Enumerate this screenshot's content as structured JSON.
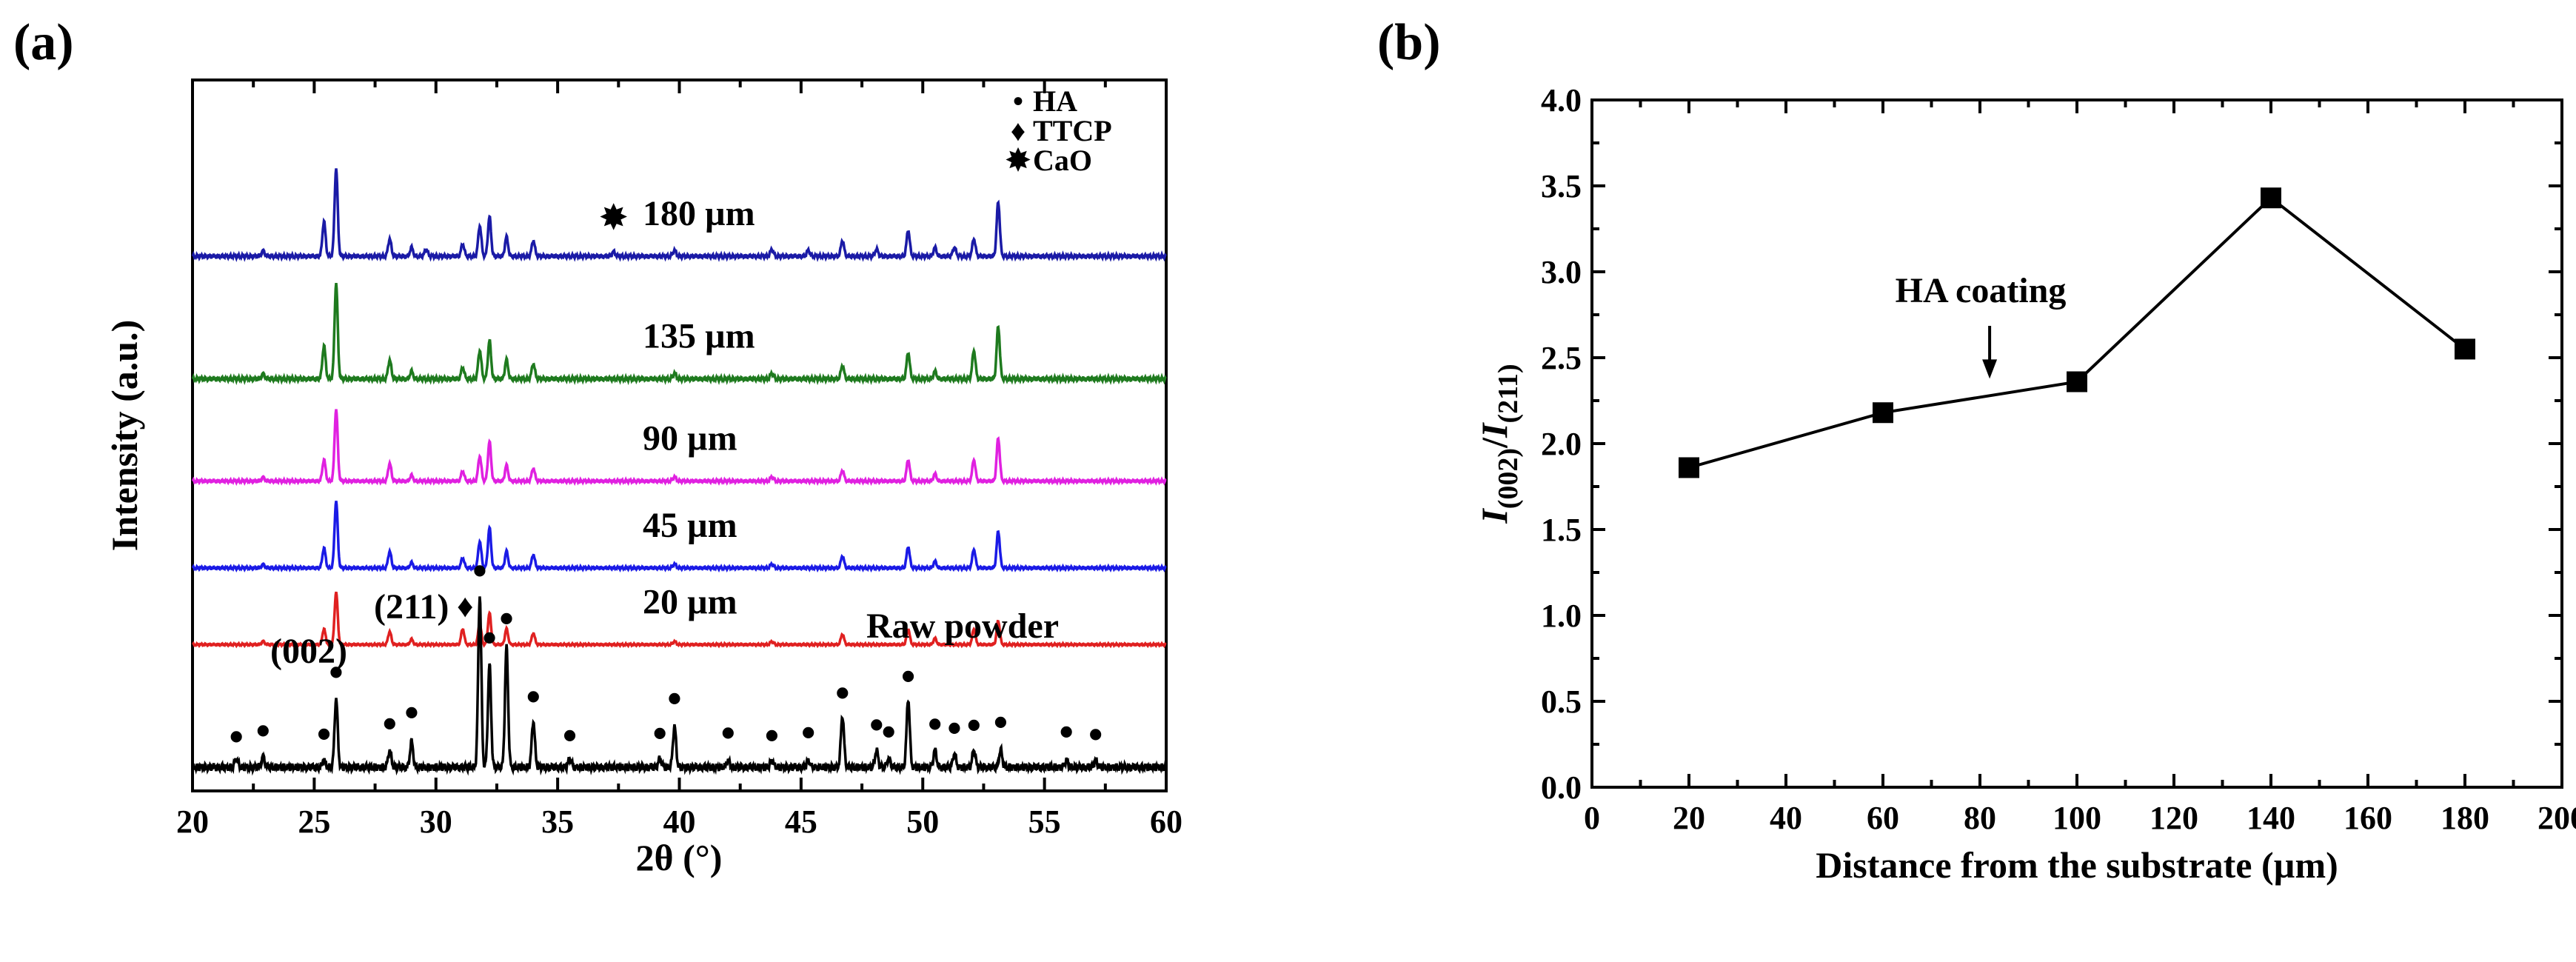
{
  "figure": {
    "panel_a_label": "(a)",
    "panel_b_label": "(b)"
  },
  "chart_data": [
    {
      "type": "line",
      "title": "",
      "xlabel": "2θ (°)",
      "ylabel": "Intensity (a.u.)",
      "xlim": [
        20,
        60
      ],
      "xticks": [
        "20",
        "25",
        "30",
        "35",
        "40",
        "45",
        "50",
        "55",
        "60"
      ],
      "legend": {
        "position": "top-right",
        "entries": [
          {
            "symbol": "•",
            "label": "HA"
          },
          {
            "symbol": "♦",
            "label": "TTCP"
          },
          {
            "symbol": "✸",
            "label": "CaO"
          }
        ]
      },
      "hkl_labels": [
        {
          "text": "(002)",
          "two_theta": 25.9
        },
        {
          "text": "(211)",
          "two_theta": 31.8
        }
      ],
      "series": [
        {
          "name": "180 µm",
          "color": "#1a1aa6",
          "offset": 5,
          "scale": 0.55,
          "peaks": [
            [
              25.9,
              1.0
            ],
            [
              25.4,
              0.4
            ],
            [
              22.9,
              0.06
            ],
            [
              28.1,
              0.2
            ],
            [
              29.0,
              0.1
            ],
            [
              29.6,
              0.08
            ],
            [
              31.1,
              0.14
            ],
            [
              31.8,
              0.35
            ],
            [
              32.2,
              0.45
            ],
            [
              32.9,
              0.22
            ],
            [
              34.0,
              0.18
            ],
            [
              37.3,
              0.05
            ],
            [
              39.8,
              0.07
            ],
            [
              43.8,
              0.08
            ],
            [
              45.3,
              0.07
            ],
            [
              46.7,
              0.18
            ],
            [
              48.1,
              0.08
            ],
            [
              49.4,
              0.3
            ],
            [
              50.5,
              0.1
            ],
            [
              51.3,
              0.1
            ],
            [
              52.1,
              0.2
            ],
            [
              53.1,
              0.62
            ]
          ],
          "markers": [
            {
              "symbol": "✸",
              "two_theta": 37.3
            }
          ]
        },
        {
          "name": "135 µm",
          "color": "#1e7a1e",
          "offset": 3.8,
          "scale": 0.6,
          "peaks": [
            [
              25.9,
              1.0
            ],
            [
              25.4,
              0.35
            ],
            [
              22.9,
              0.05
            ],
            [
              28.1,
              0.2
            ],
            [
              29.0,
              0.08
            ],
            [
              31.1,
              0.12
            ],
            [
              31.8,
              0.3
            ],
            [
              32.2,
              0.4
            ],
            [
              32.9,
              0.2
            ],
            [
              34.0,
              0.16
            ],
            [
              39.8,
              0.06
            ],
            [
              43.8,
              0.06
            ],
            [
              46.7,
              0.14
            ],
            [
              49.4,
              0.28
            ],
            [
              50.5,
              0.08
            ],
            [
              52.1,
              0.3
            ],
            [
              53.1,
              0.55
            ]
          ],
          "markers": []
        },
        {
          "name": "90 µm",
          "color": "#e020e0",
          "offset": 2.8,
          "scale": 0.45,
          "peaks": [
            [
              25.9,
              1.0
            ],
            [
              25.4,
              0.3
            ],
            [
              22.9,
              0.05
            ],
            [
              28.1,
              0.25
            ],
            [
              29.0,
              0.08
            ],
            [
              31.1,
              0.14
            ],
            [
              31.8,
              0.35
            ],
            [
              32.2,
              0.55
            ],
            [
              32.9,
              0.22
            ],
            [
              34.0,
              0.18
            ],
            [
              39.8,
              0.06
            ],
            [
              43.8,
              0.06
            ],
            [
              46.7,
              0.15
            ],
            [
              49.4,
              0.3
            ],
            [
              50.5,
              0.1
            ],
            [
              52.1,
              0.3
            ],
            [
              53.1,
              0.6
            ]
          ],
          "markers": []
        },
        {
          "name": "45 µm",
          "color": "#1a1ae6",
          "offset": 1.95,
          "scale": 0.42,
          "peaks": [
            [
              25.9,
              1.0
            ],
            [
              25.4,
              0.3
            ],
            [
              22.9,
              0.05
            ],
            [
              28.1,
              0.25
            ],
            [
              29.0,
              0.08
            ],
            [
              31.1,
              0.15
            ],
            [
              31.8,
              0.4
            ],
            [
              32.2,
              0.6
            ],
            [
              32.9,
              0.25
            ],
            [
              34.0,
              0.2
            ],
            [
              39.8,
              0.06
            ],
            [
              43.8,
              0.06
            ],
            [
              46.7,
              0.18
            ],
            [
              49.4,
              0.32
            ],
            [
              50.5,
              0.1
            ],
            [
              52.1,
              0.28
            ],
            [
              53.1,
              0.55
            ]
          ],
          "markers": []
        },
        {
          "name": "20 µm",
          "color": "#e02020",
          "offset": 1.2,
          "scale": 0.33,
          "peaks": [
            [
              25.9,
              1.0
            ],
            [
              25.4,
              0.3
            ],
            [
              22.9,
              0.06
            ],
            [
              28.1,
              0.25
            ],
            [
              29.0,
              0.1
            ],
            [
              31.1,
              0.3
            ],
            [
              31.8,
              0.4
            ],
            [
              32.2,
              0.6
            ],
            [
              32.9,
              0.3
            ],
            [
              34.0,
              0.22
            ],
            [
              39.8,
              0.06
            ],
            [
              43.8,
              0.06
            ],
            [
              46.7,
              0.2
            ],
            [
              49.4,
              0.3
            ],
            [
              50.5,
              0.12
            ],
            [
              52.1,
              0.3
            ],
            [
              53.1,
              0.45
            ]
          ],
          "markers": [
            {
              "symbol": "♦",
              "two_theta": 31.2
            }
          ]
        },
        {
          "name": "Raw powder",
          "color": "#000000",
          "offset": 0,
          "scale": 0.9,
          "peaks": [
            [
              21.8,
              0.05
            ],
            [
              22.9,
              0.06
            ],
            [
              25.4,
              0.04
            ],
            [
              25.9,
              0.4
            ],
            [
              28.1,
              0.1
            ],
            [
              29.0,
              0.15
            ],
            [
              31.8,
              1.0
            ],
            [
              32.2,
              0.6
            ],
            [
              32.9,
              0.7
            ],
            [
              34.0,
              0.27
            ],
            [
              35.5,
              0.05
            ],
            [
              39.2,
              0.05
            ],
            [
              39.8,
              0.24
            ],
            [
              42.0,
              0.04
            ],
            [
              43.8,
              0.04
            ],
            [
              45.3,
              0.04
            ],
            [
              46.7,
              0.3
            ],
            [
              48.1,
              0.1
            ],
            [
              48.6,
              0.05
            ],
            [
              49.4,
              0.4
            ],
            [
              50.5,
              0.1
            ],
            [
              51.3,
              0.08
            ],
            [
              52.1,
              0.1
            ],
            [
              53.2,
              0.1
            ],
            [
              55.9,
              0.04
            ],
            [
              57.1,
              0.04
            ]
          ],
          "markers": [
            {
              "symbol": "•",
              "two_theta": 21.8
            },
            {
              "symbol": "•",
              "two_theta": 22.9
            },
            {
              "symbol": "•",
              "two_theta": 25.4
            },
            {
              "symbol": "•",
              "two_theta": 25.9
            },
            {
              "symbol": "•",
              "two_theta": 28.1
            },
            {
              "symbol": "•",
              "two_theta": 29.0
            },
            {
              "symbol": "•",
              "two_theta": 31.8
            },
            {
              "symbol": "•",
              "two_theta": 32.2
            },
            {
              "symbol": "•",
              "two_theta": 32.9
            },
            {
              "symbol": "•",
              "two_theta": 34.0
            },
            {
              "symbol": "•",
              "two_theta": 35.5
            },
            {
              "symbol": "•",
              "two_theta": 39.2
            },
            {
              "symbol": "•",
              "two_theta": 39.8
            },
            {
              "symbol": "•",
              "two_theta": 42.0
            },
            {
              "symbol": "•",
              "two_theta": 43.8
            },
            {
              "symbol": "•",
              "two_theta": 45.3
            },
            {
              "symbol": "•",
              "two_theta": 46.7
            },
            {
              "symbol": "•",
              "two_theta": 48.1
            },
            {
              "symbol": "•",
              "two_theta": 48.6
            },
            {
              "symbol": "•",
              "two_theta": 49.4
            },
            {
              "symbol": "•",
              "two_theta": 50.5
            },
            {
              "symbol": "•",
              "two_theta": 51.3
            },
            {
              "symbol": "•",
              "two_theta": 52.1
            },
            {
              "symbol": "•",
              "two_theta": 53.2
            },
            {
              "symbol": "•",
              "two_theta": 55.9
            },
            {
              "symbol": "•",
              "two_theta": 57.1
            }
          ]
        }
      ]
    },
    {
      "type": "line",
      "title": "",
      "xlabel": "Distance from the substrate (µm)",
      "ylabel_parts": {
        "i": "I",
        "sub1": "(002)",
        "slash": "/",
        "sub2": "(211)"
      },
      "xlim": [
        0,
        200
      ],
      "ylim": [
        0.0,
        4.0
      ],
      "xticks": [
        "0",
        "20",
        "40",
        "60",
        "80",
        "100",
        "120",
        "140",
        "160",
        "180",
        "200"
      ],
      "yticks": [
        "0.0",
        "0.5",
        "1.0",
        "1.5",
        "2.0",
        "2.5",
        "3.0",
        "3.5",
        "4.0"
      ],
      "series": [
        {
          "name": "HA coating",
          "marker": "square",
          "x": [
            20,
            60,
            100,
            140,
            180
          ],
          "y": [
            1.86,
            2.18,
            2.36,
            3.43,
            2.55
          ]
        }
      ],
      "annotation": {
        "text": "HA coating",
        "x": 82,
        "y": 2.3
      }
    }
  ]
}
